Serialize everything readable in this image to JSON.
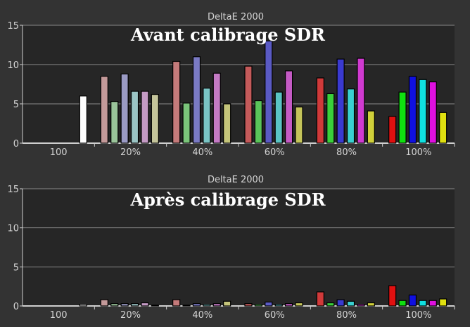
{
  "palette": {
    "background": "#333333",
    "plot_background": "#262626",
    "grid": "#8a8a8a",
    "axis_text": "#d4d4d4",
    "grays": [
      "#ffffff",
      "#dddddd"
    ],
    "group_colors": {
      "20%": [
        "#c49a9a",
        "#9ac49a",
        "#9a9ac4",
        "#9ac4c4",
        "#c49ac4",
        "#c4c49a"
      ],
      "40%": [
        "#c47a7a",
        "#7ac47a",
        "#7a7ac4",
        "#7ac4c4",
        "#c47ac4",
        "#c4c47a"
      ],
      "60%": [
        "#c45a5a",
        "#5ac45a",
        "#5a5ac4",
        "#5ac4c4",
        "#c45ac4",
        "#c4c45a"
      ],
      "80%": [
        "#d03a3a",
        "#3ad03a",
        "#3a3ad0",
        "#3ad0d0",
        "#d03ad0",
        "#d0d03a"
      ],
      "100%": [
        "#e01010",
        "#10e010",
        "#1010e0",
        "#10e0e0",
        "#e010e0",
        "#e0e010"
      ]
    }
  },
  "chart_data": [
    {
      "type": "bar",
      "title": "DeltaE 2000",
      "overlay_title": "Avant calibrage SDR",
      "categories": [
        "100",
        "20%",
        "40%",
        "60%",
        "80%",
        "100%"
      ],
      "ylim": [
        0,
        15
      ],
      "yticks": [
        0,
        5,
        10,
        15
      ],
      "grid": true,
      "series": [
        {
          "values": [
            6.0,
            8.5,
            10.4,
            9.8,
            8.3,
            3.4
          ]
        },
        {
          "values": [
            null,
            5.3,
            5.1,
            5.4,
            6.3,
            6.5
          ]
        },
        {
          "values": [
            null,
            8.8,
            11.0,
            13.0,
            10.7,
            8.5
          ]
        },
        {
          "values": [
            null,
            6.6,
            7.0,
            6.5,
            6.9,
            8.1
          ]
        },
        {
          "values": [
            null,
            6.6,
            8.9,
            9.2,
            10.8,
            7.8
          ]
        },
        {
          "values": [
            null,
            6.2,
            5.0,
            4.6,
            4.1,
            3.9
          ]
        }
      ]
    },
    {
      "type": "bar",
      "title": "DeltaE 2000",
      "overlay_title": "Après calibrage SDR",
      "categories": [
        "100",
        "20%",
        "40%",
        "60%",
        "80%",
        "100%"
      ],
      "ylim": [
        0,
        15
      ],
      "yticks": [
        0,
        5,
        10,
        15
      ],
      "grid": true,
      "series": [
        {
          "values": [
            0.2,
            0.8,
            0.8,
            0.3,
            1.8,
            2.6
          ]
        },
        {
          "values": [
            null,
            0.3,
            0.1,
            0.2,
            0.4,
            0.7
          ]
        },
        {
          "values": [
            null,
            0.3,
            0.3,
            0.5,
            0.8,
            1.4
          ]
        },
        {
          "values": [
            null,
            0.3,
            0.2,
            0.2,
            0.6,
            0.7
          ]
        },
        {
          "values": [
            null,
            0.4,
            0.3,
            0.3,
            0.2,
            0.7
          ]
        },
        {
          "values": [
            null,
            0.1,
            0.6,
            0.4,
            0.4,
            0.9
          ]
        }
      ]
    }
  ]
}
